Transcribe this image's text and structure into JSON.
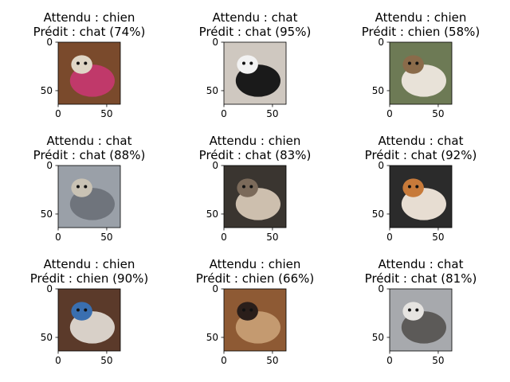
{
  "chart_data": {
    "type": "image-grid",
    "xlim": [
      0,
      64
    ],
    "ylim": [
      64,
      0
    ],
    "xticks": [
      0,
      50
    ],
    "yticks": [
      0,
      50
    ],
    "xtick_labels": [
      "0",
      "50"
    ],
    "ytick_labels": [
      "0",
      "50"
    ],
    "panels": [
      {
        "expected": "Attendu : chien",
        "predicted": "Prédit : chat (74%)",
        "subject": "dachshund-in-pink-sweater-photo",
        "palette": [
          "#7a4a2c",
          "#c0396a",
          "#dfd6c6"
        ]
      },
      {
        "expected": "Attendu : chat",
        "predicted": "Prédit : chat (95%)",
        "subject": "black-and-white-cat-photo",
        "palette": [
          "#cfc8c0",
          "#1a1a1a",
          "#f2f2f2"
        ]
      },
      {
        "expected": "Attendu : chien",
        "predicted": "Prédit : chien (58%)",
        "subject": "spotted-white-dog-photo",
        "palette": [
          "#6d7a55",
          "#e8e2d8",
          "#8a6b4a"
        ]
      },
      {
        "expected": "Attendu : chat",
        "predicted": "Prédit : chat (88%)",
        "subject": "grey-cat-photo",
        "palette": [
          "#9aa0a8",
          "#6f747c",
          "#c9c2b4"
        ]
      },
      {
        "expected": "Attendu : chien",
        "predicted": "Prédit : chat (83%)",
        "subject": "dog-on-chair-photo",
        "palette": [
          "#3a3530",
          "#cdbfae",
          "#7b6a5a"
        ]
      },
      {
        "expected": "Attendu : chat",
        "predicted": "Prédit : chat (92%)",
        "subject": "calico-cat-photo",
        "palette": [
          "#2b2b2b",
          "#e7ddd2",
          "#c77a3a"
        ]
      },
      {
        "expected": "Attendu : chien",
        "predicted": "Prédit : chien (90%)",
        "subject": "dog-with-colorful-blanket-photo",
        "palette": [
          "#5b3a2a",
          "#d8d0c8",
          "#3a6fb0"
        ]
      },
      {
        "expected": "Attendu : chien",
        "predicted": "Prédit : chien (66%)",
        "subject": "brown-puppy-photo",
        "palette": [
          "#8e5a34",
          "#c49a70",
          "#2a1e1a"
        ]
      },
      {
        "expected": "Attendu : chat",
        "predicted": "Prédit : chat (81%)",
        "subject": "tabby-cat-photo",
        "palette": [
          "#a7a9ad",
          "#5c5a58",
          "#e6e4e1"
        ]
      }
    ]
  }
}
